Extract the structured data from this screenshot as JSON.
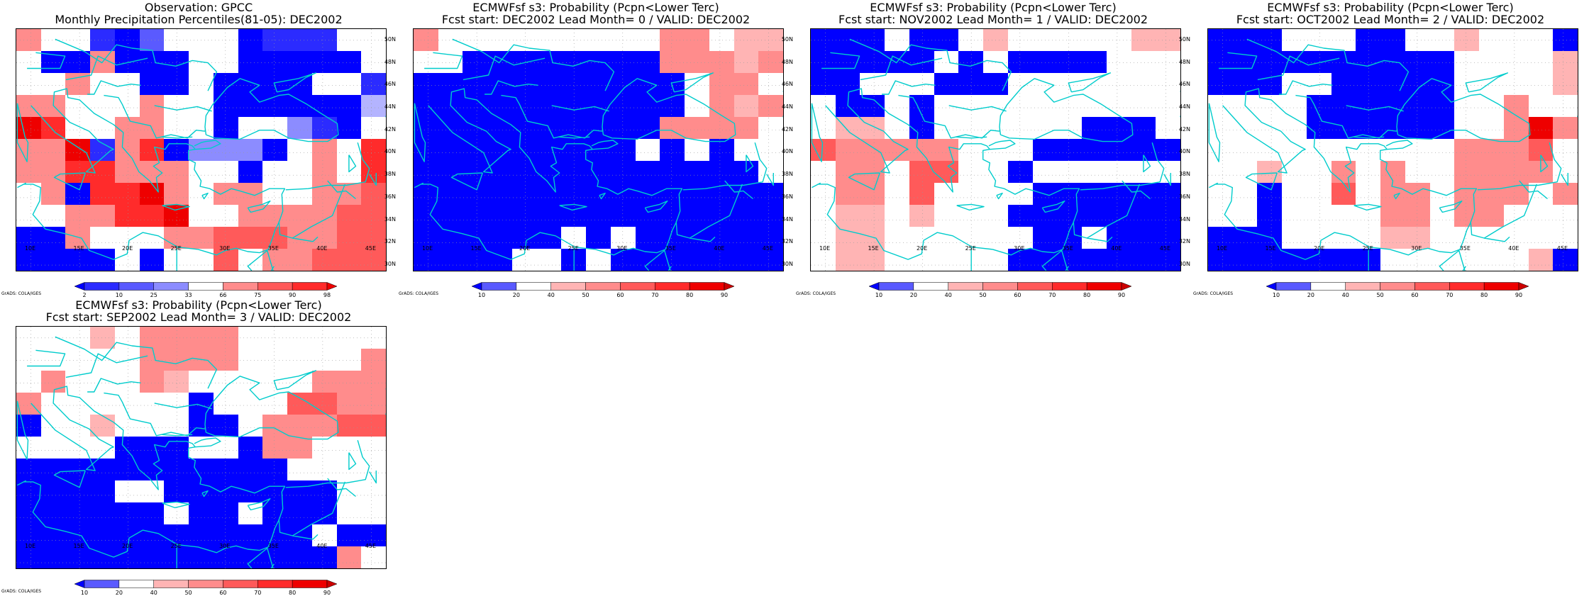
{
  "map_data": {
    "lat_labels": [
      "50N",
      "48N",
      "46N",
      "44N",
      "42N",
      "40N",
      "38N",
      "36N",
      "34N",
      "32N",
      "30N"
    ],
    "lon_labels": [
      "10E",
      "15E",
      "20E",
      "25E",
      "30E",
      "35E",
      "40E",
      "45E"
    ],
    "credit": "GrADS: COLA/IGES",
    "colors": {
      "0": "#ffffff",
      "a": "#0000ff",
      "b": "#2b2bff",
      "c": "#5a5aff",
      "d": "#8c8cff",
      "e": "#b4b4ff",
      "p": "#ffb4b4",
      "q": "#ff8c8c",
      "r": "#ff5a5a",
      "s": "#ff2b2b",
      "t": "#ee0000"
    },
    "panels": [
      {
        "id": "obs",
        "title_lines": [
          "Observation: GPCC",
          "Monthly Precipitation Percentiles(81-05): DEC2002"
        ],
        "colorbar": {
          "labels": [
            "2",
            "10",
            "25",
            "33",
            "66",
            "75",
            "90",
            "98"
          ],
          "colors": [
            "#0000ff",
            "#2b2bff",
            "#5a5aff",
            "#8c8cff",
            "#ffffff",
            "#ff8c8c",
            "#ff5a5a",
            "#ff2b2b",
            "#ee0000"
          ]
        },
        "rows": [
          "q00bac000abbb00",
          "0aaqaaa00aaaaa0",
          "00q00aa0aaaa00b",
          "qq000q00aaaaaae",
          "ts00qq00a00dba0",
          "qqtbqsaddda0q0s",
          "qqssqqq00a00q0s",
          "0qasstq0qq00qqr",
          "00qqsst00qqqqrr",
          "aaq000qqrrrqqrr",
          "aaaa0a00r0qqrrr"
        ]
      },
      {
        "id": "lead0",
        "title_lines": [
          "ECMWFsf s3: Probability (Pcpn<Lower Terc)",
          "Fcst start: DEC2002  Lead Month= 0 / VALID: DEC2002"
        ],
        "colorbar": {
          "labels": [
            "10",
            "20",
            "40",
            "50",
            "60",
            "70",
            "80",
            "90"
          ],
          "colors": [
            "#0000ff",
            "#5a5aff",
            "#ffffff",
            "#ffb4b4",
            "#ff8c8c",
            "#ff5a5a",
            "#ff2b2b",
            "#ee0000",
            "#cc0000"
          ]
        },
        "rows": [
          "q000000000qq0pp",
          "00aaaaaaaaqqqpq",
          "aaaaaaaaaaa0qq0",
          "aaaaaaaaaaa0qpq",
          "aaaaaaaaaaqqqq0",
          "aaaaaaaaa0a0a00",
          "aaaaaaaaaaaaaa0",
          "aaaaaaaaaaaaaaa",
          "aaaaaaaaaaaaaaa",
          "aaaaaa0a0aaaaaa",
          "aaaa00a0aaaaaaa"
        ]
      },
      {
        "id": "lead1",
        "title_lines": [
          "ECMWFsf s3: Probability (Pcpn<Lower Terc)",
          "Fcst start: NOV2002  Lead Month= 1 / VALID: DEC2002"
        ],
        "colorbar": {
          "labels": [
            "10",
            "20",
            "40",
            "50",
            "60",
            "70",
            "80",
            "90"
          ],
          "colors": [
            "#0000ff",
            "#5a5aff",
            "#ffffff",
            "#ffb4b4",
            "#ff8c8c",
            "#ff5a5a",
            "#ff2b2b",
            "#ee0000",
            "#cc0000"
          ]
        },
        "rows": [
          "aaa0aa0p00000pp",
          "aaaaa0a0aaaa000",
          "aa000aaa0000000",
          "0aa0a0000000000",
          "0pp0a000000aaa0",
          "rqqqqq000aaaaaa",
          "0qq0rr00a000000",
          "0qq0r0000aaaaaa",
          "0pp0p000aaaaaaa",
          "0pp000000aa0aaa",
          "0pp00000aaaaaaa"
        ]
      },
      {
        "id": "lead2",
        "title_lines": [
          "ECMWFsf s3: Probability (Pcpn<Lower Terc)",
          "Fcst start: OCT2002  Lead Month= 2 / VALID: DEC2002"
        ],
        "colorbar": {
          "labels": [
            "10",
            "20",
            "40",
            "50",
            "60",
            "70",
            "80",
            "90"
          ],
          "colors": [
            "#0000ff",
            "#5a5aff",
            "#ffffff",
            "#ffb4b4",
            "#ff8c8c",
            "#ff5a5a",
            "#ff2b2b",
            "#ee0000",
            "#cc0000"
          ]
        },
        "rows": [
          "aaa000aa00p000a",
          "aaaaaaaaaa0000p",
          "aaa00aaaaa0000p",
          "0000aaaaaa00q00",
          "0000aaaaaa00qtq",
          "0000000000qqqr0",
          "00p00q0q00qqqq0",
          "00a00r0qq0qqq0q",
          "00a0000qq0qq000",
          "aaa0000pp000000",
          "aaaaaaa000000pa"
        ]
      },
      {
        "id": "lead3",
        "title_lines": [
          "ECMWFsf s3: Probability (Pcpn<Lower Terc)",
          "Fcst start: SEP2002  Lead Month= 3 / VALID: DEC2002"
        ],
        "colorbar": {
          "labels": [
            "10",
            "20",
            "40",
            "50",
            "60",
            "70",
            "80",
            "90"
          ],
          "colors": [
            "#0000ff",
            "#5a5aff",
            "#ffffff",
            "#ffb4b4",
            "#ff8c8c",
            "#ff5a5a",
            "#ff2b2b",
            "#ee0000",
            "#cc0000"
          ]
        },
        "rows": [
          "000p0qqqq000000",
          "00000qqqq00000q",
          "0q000qp00000qqq",
          "q000000a000rrqq",
          "a00p000aa0qqqrr",
          "0000aaa00aqq000",
          "aaaaaaaaaaa0000",
          "aaaa00aaaaaaa00",
          "aaaaaa0aa0aaa00",
          "aaaaaaaaaaaa0aa",
          "aaaaaaaaaaaaaq0"
        ]
      }
    ]
  }
}
